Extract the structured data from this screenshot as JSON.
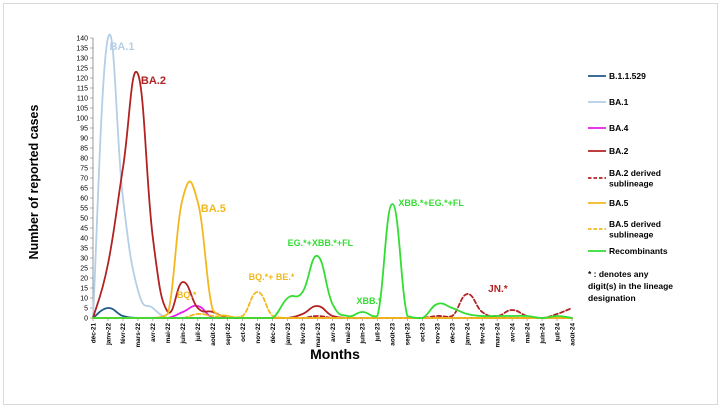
{
  "chart_data": {
    "type": "line",
    "title": "",
    "xlabel": "Months",
    "ylabel": "Number of reported cases",
    "ylim": [
      0,
      140
    ],
    "yticks": [
      0,
      5,
      10,
      15,
      20,
      25,
      30,
      35,
      40,
      45,
      50,
      55,
      60,
      65,
      70,
      75,
      80,
      85,
      90,
      95,
      100,
      105,
      110,
      115,
      120,
      125,
      130,
      135,
      140
    ],
    "categories": [
      "déc-21",
      "janv-22",
      "févr-22",
      "mars-22",
      "avr-22",
      "mai-22",
      "juin-22",
      "juil-22",
      "août-22",
      "sept-22",
      "oct-22",
      "nov-22",
      "déc-22",
      "janv-23",
      "févr-23",
      "mars-23",
      "avr-23",
      "mai-23",
      "juin-23",
      "juil-23",
      "août-23",
      "sept-23",
      "oct-23",
      "nov-23",
      "déc-23",
      "janv-24",
      "févr-24",
      "mars-24",
      "avr-24",
      "mai-24",
      "juin-24",
      "juil-24",
      "août-24"
    ],
    "legend_position": "right",
    "series": [
      {
        "name": "B.1.1.529",
        "color": "#1f5a8c",
        "dash": false,
        "values": [
          0,
          5,
          1,
          0,
          0,
          0,
          0,
          0,
          0,
          0,
          0,
          0,
          0,
          0,
          0,
          0,
          0,
          0,
          0,
          0,
          0,
          0,
          0,
          0,
          0,
          0,
          0,
          0,
          0,
          0,
          0,
          0,
          0
        ]
      },
      {
        "name": "BA.1",
        "color": "#b4cfe6",
        "dash": false,
        "values": [
          0,
          140,
          60,
          14,
          5,
          0,
          0,
          0,
          0,
          0,
          0,
          0,
          0,
          0,
          0,
          0,
          0,
          0,
          0,
          0,
          0,
          0,
          0,
          0,
          0,
          0,
          0,
          0,
          0,
          0,
          0,
          0,
          0
        ]
      },
      {
        "name": "BA.4",
        "color": "#e61ee6",
        "dash": false,
        "values": [
          0,
          0,
          0,
          0,
          0,
          0,
          3,
          6,
          0,
          0,
          0,
          0,
          0,
          0,
          0,
          0,
          0,
          0,
          0,
          0,
          0,
          0,
          0,
          0,
          0,
          0,
          0,
          0,
          0,
          0,
          0,
          0,
          0
        ]
      },
      {
        "name": "BA.2",
        "color": "#b22222",
        "dash": false,
        "values": [
          0,
          27,
          75,
          122,
          40,
          3,
          18,
          5,
          3,
          0,
          0,
          0,
          0,
          0,
          2,
          6,
          1,
          0,
          0,
          0,
          0,
          0,
          0,
          0,
          0,
          0,
          0,
          0,
          0,
          0,
          0,
          0,
          0
        ]
      },
      {
        "name": "BA.2 derived sublineage",
        "color": "#b22222",
        "dash": true,
        "values": [
          0,
          0,
          0,
          0,
          0,
          0,
          0,
          0,
          0,
          0,
          0,
          0,
          0,
          0,
          0,
          1,
          0,
          0,
          0,
          0,
          0,
          0,
          0,
          1,
          1,
          12,
          3,
          1,
          4,
          1,
          0,
          2,
          5
        ]
      },
      {
        "name": "BA.5",
        "color": "#f2b81e",
        "dash": false,
        "values": [
          0,
          0,
          0,
          0,
          0,
          2,
          60,
          58,
          4,
          1,
          0,
          0,
          0,
          0,
          0,
          0,
          0,
          0,
          0,
          0,
          0,
          0,
          0,
          0,
          0,
          0,
          0,
          0,
          0,
          0,
          0,
          0,
          0
        ]
      },
      {
        "name": "BA.5 derived sublineage",
        "color": "#f2b81e",
        "dash": true,
        "values": [
          0,
          0,
          0,
          0,
          0,
          0,
          0,
          2,
          1,
          0,
          1,
          13,
          1,
          0,
          0,
          0,
          0,
          0,
          0,
          0,
          0,
          0,
          0,
          0,
          0,
          0,
          0,
          0,
          0,
          0,
          0,
          0,
          0
        ]
      },
      {
        "name": "Recombinants",
        "color": "#33dd33",
        "dash": false,
        "values": [
          0,
          0,
          0,
          0,
          0,
          0,
          0,
          0,
          0,
          0,
          0,
          0,
          0,
          10,
          13,
          31,
          7,
          1,
          3,
          1,
          57,
          1,
          0,
          7,
          5,
          2,
          1,
          1,
          1,
          1,
          0,
          1,
          0
        ]
      }
    ],
    "annotations": [
      {
        "text": "BA.1",
        "color": "#b4cfe6",
        "size": 11,
        "x": 1.1,
        "y": 134
      },
      {
        "text": "BA.2",
        "color": "#b22222",
        "size": 11,
        "x": 3.2,
        "y": 117
      },
      {
        "text": "BA.5",
        "color": "#f2b81e",
        "size": 11,
        "x": 7.2,
        "y": 53
      },
      {
        "text": "BQ.*",
        "color": "#f2b81e",
        "size": 9,
        "x": 5.6,
        "y": 10
      },
      {
        "text": "BQ.*+ BE.*",
        "color": "#f2b81e",
        "size": 9,
        "x": 10.4,
        "y": 19
      },
      {
        "text": "EG.*+XBB.*+FL",
        "color": "#33dd33",
        "size": 9,
        "x": 13.0,
        "y": 36
      },
      {
        "text": "XBB.*",
        "color": "#33dd33",
        "size": 9,
        "x": 17.6,
        "y": 7
      },
      {
        "text": "XBB.*+EG.*+FL",
        "color": "#33dd33",
        "size": 9,
        "x": 20.4,
        "y": 56
      },
      {
        "text": "JN.*",
        "color": "#b22222",
        "size": 10,
        "x": 26.4,
        "y": 13
      }
    ],
    "footnote": [
      "*     :     denotes     any",
      "digit(s) in the lineage",
      "designation"
    ]
  }
}
